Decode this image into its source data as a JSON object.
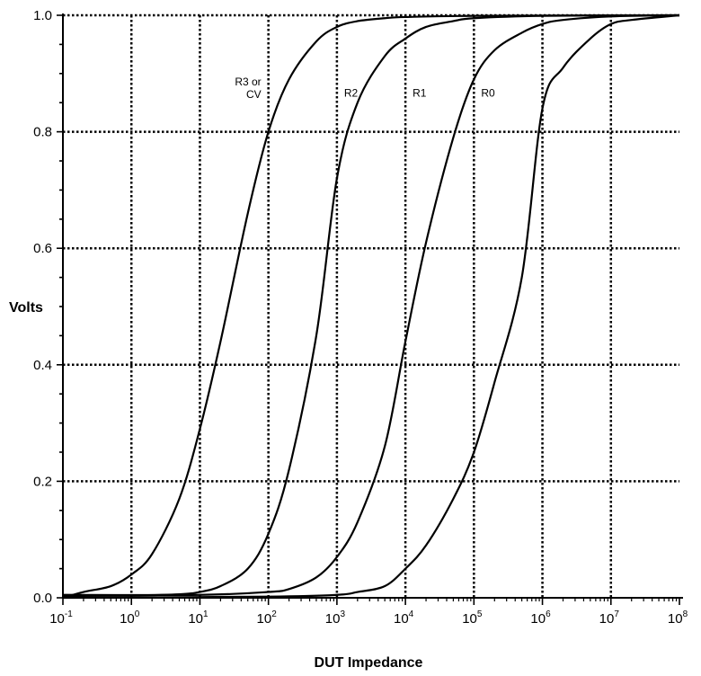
{
  "chart_data": {
    "type": "line",
    "title": "",
    "xlabel": "DUT Impedance",
    "ylabel": "Volts",
    "x_scale": "log",
    "xlim": [
      0.1,
      100000000
    ],
    "ylim": [
      0,
      1.0
    ],
    "grid": true,
    "x_ticks": [
      {
        "base": "10",
        "exp": "-1"
      },
      {
        "base": "10",
        "exp": "0"
      },
      {
        "base": "10",
        "exp": "1"
      },
      {
        "base": "10",
        "exp": "2"
      },
      {
        "base": "10",
        "exp": "3"
      },
      {
        "base": "10",
        "exp": "4"
      },
      {
        "base": "10",
        "exp": "5"
      },
      {
        "base": "10",
        "exp": "6"
      },
      {
        "base": "10",
        "exp": "7"
      },
      {
        "base": "10",
        "exp": "8"
      }
    ],
    "y_ticks": [
      "0.0",
      "0.2",
      "0.4",
      "0.6",
      "0.8",
      "1.0"
    ],
    "series": [
      {
        "name": "R3 or CV",
        "label_lines": [
          "R3 or",
          "CV"
        ],
        "points": [
          [
            0.1,
            0.0
          ],
          [
            0.2,
            0.01
          ],
          [
            0.5,
            0.02
          ],
          [
            1,
            0.04
          ],
          [
            2,
            0.075
          ],
          [
            5,
            0.17
          ],
          [
            10,
            0.29
          ],
          [
            20,
            0.44
          ],
          [
            50,
            0.66
          ],
          [
            100,
            0.8
          ],
          [
            200,
            0.89
          ],
          [
            500,
            0.955
          ],
          [
            1000,
            0.98
          ],
          [
            2000,
            0.99
          ],
          [
            5000,
            0.995
          ],
          [
            10000,
            0.997
          ],
          [
            100000,
            0.999
          ],
          [
            100000000,
            1.0
          ]
        ]
      },
      {
        "name": "R2",
        "label_lines": [
          "R2"
        ],
        "points": [
          [
            0.1,
            0.003
          ],
          [
            1,
            0.004
          ],
          [
            5,
            0.006
          ],
          [
            10,
            0.01
          ],
          [
            20,
            0.02
          ],
          [
            50,
            0.05
          ],
          [
            100,
            0.11
          ],
          [
            200,
            0.22
          ],
          [
            500,
            0.45
          ],
          [
            1000,
            0.72
          ],
          [
            2000,
            0.85
          ],
          [
            5000,
            0.93
          ],
          [
            10000,
            0.96
          ],
          [
            20000,
            0.98
          ],
          [
            50000,
            0.99
          ],
          [
            100000,
            0.995
          ],
          [
            1000000,
            0.999
          ],
          [
            100000000,
            1.0
          ]
        ]
      },
      {
        "name": "R1",
        "label_lines": [
          "R1"
        ],
        "points": [
          [
            0.1,
            0.005
          ],
          [
            10,
            0.005
          ],
          [
            100,
            0.01
          ],
          [
            200,
            0.015
          ],
          [
            500,
            0.035
          ],
          [
            1000,
            0.07
          ],
          [
            2000,
            0.13
          ],
          [
            5000,
            0.26
          ],
          [
            10000,
            0.44
          ],
          [
            20000,
            0.61
          ],
          [
            50000,
            0.79
          ],
          [
            100000,
            0.89
          ],
          [
            200000,
            0.94
          ],
          [
            500000,
            0.97
          ],
          [
            1000000,
            0.985
          ],
          [
            2000000,
            0.992
          ],
          [
            10000000,
            0.998
          ],
          [
            100000000,
            1.0
          ]
        ]
      },
      {
        "name": "R0",
        "label_lines": [
          "R0"
        ],
        "points": [
          [
            0.1,
            0.0
          ],
          [
            100,
            0.002
          ],
          [
            1000,
            0.005
          ],
          [
            2000,
            0.01
          ],
          [
            5000,
            0.02
          ],
          [
            10000,
            0.05
          ],
          [
            20000,
            0.09
          ],
          [
            50000,
            0.17
          ],
          [
            100000,
            0.25
          ],
          [
            200000,
            0.37
          ],
          [
            500000,
            0.55
          ],
          [
            1000000,
            0.84
          ],
          [
            2000000,
            0.91
          ],
          [
            5000000,
            0.96
          ],
          [
            10000000,
            0.985
          ],
          [
            20000000,
            0.992
          ],
          [
            100000000,
            1.0
          ]
        ]
      }
    ]
  }
}
